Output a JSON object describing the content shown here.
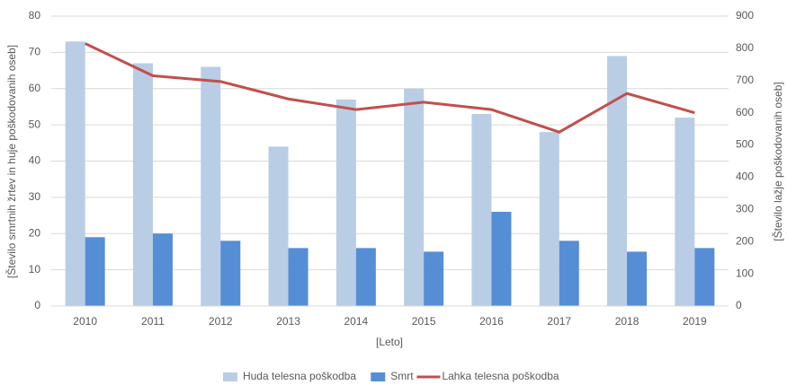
{
  "chart_data": {
    "type": "bar",
    "categories": [
      "2010",
      "2011",
      "2012",
      "2013",
      "2014",
      "2015",
      "2016",
      "2017",
      "2018",
      "2019"
    ],
    "series": [
      {
        "name": "Huda telesna poškodba",
        "color": "#b9cde5",
        "values": [
          73,
          67,
          66,
          44,
          57,
          60,
          53,
          48,
          69,
          52
        ]
      },
      {
        "name": "Smrt",
        "color": "#558ed5",
        "values": [
          19,
          20,
          18,
          16,
          16,
          15,
          26,
          18,
          15,
          16
        ]
      },
      {
        "name": "Lahka telesna poškodba",
        "color": "#c0504d",
        "type": "line",
        "axis": "y2",
        "values": [
          815,
          715,
          697,
          643,
          610,
          633,
          610,
          540,
          660,
          600
        ]
      }
    ],
    "ylim": [
      0,
      80
    ],
    "yticks": [
      0,
      10,
      20,
      30,
      40,
      50,
      60,
      70,
      80
    ],
    "y2lim": [
      0,
      900
    ],
    "y2ticks": [
      0,
      100,
      200,
      300,
      400,
      500,
      600,
      700,
      800,
      900
    ],
    "xlabel": "[Leto]",
    "ylabel": "[Število smrtnih žrtev in huje poškodovanih oseb]",
    "y2label": "[Število lažje poškodovanih oseb]",
    "grid": true,
    "legend": "bottom"
  }
}
